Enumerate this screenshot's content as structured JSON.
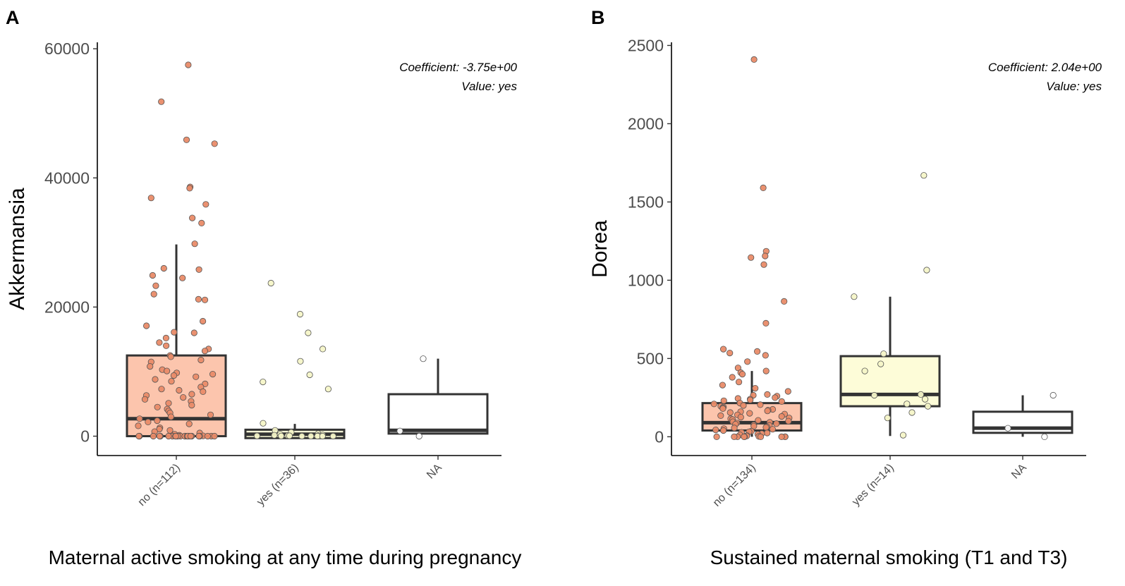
{
  "chart_data": [
    {
      "panel_label": "A",
      "type": "box",
      "ylabel": "Akkermansia",
      "xlabel": "Maternal active smoking at any time during pregnancy",
      "ylim": [
        -3000,
        61000
      ],
      "yticks": [
        0,
        20000,
        40000,
        60000
      ],
      "annotation": [
        "Coefficient: -3.75e+00",
        "Value: yes"
      ],
      "categories": [
        "no (n=112)",
        "yes (n=36)",
        "NA"
      ],
      "fills": [
        "#fcc5ad",
        "#fdfcd8",
        "#ffffff"
      ],
      "point_colors": [
        "#e98b68",
        "#f6f5c8",
        "#ffffff"
      ],
      "boxes": [
        {
          "q1": 0,
          "median": 2700,
          "q3": 12500,
          "whisker_low": 0,
          "whisker_high": 29700
        },
        {
          "q1": -300,
          "median": 300,
          "q3": 1000,
          "whisker_low": -300,
          "whisker_high": 1900
        },
        {
          "q1": 400,
          "median": 900,
          "q3": 6500,
          "whisker_low": 400,
          "whisker_high": 12000
        }
      ],
      "points": [
        [
          57500,
          51800,
          45900,
          45300,
          38600,
          38400,
          36900,
          35900,
          33800,
          33000,
          29800,
          26000,
          25800,
          24900,
          24500,
          23300,
          22000,
          21200,
          21100,
          17800,
          17100,
          16100,
          16000,
          15200,
          14500,
          14000,
          13500,
          13200,
          12500,
          12300,
          11800,
          11500,
          10800,
          10300,
          10100,
          9800,
          9600,
          9400,
          9200,
          8800,
          8500,
          8100,
          7600,
          7300,
          7100,
          6900,
          6500,
          6300,
          6000,
          5700,
          5400,
          5100,
          4800,
          4500,
          4200,
          3900,
          3600,
          3300,
          3000,
          2700,
          2400,
          2200,
          1900,
          1600,
          1300,
          1100,
          900,
          700,
          500,
          300,
          150,
          50,
          0,
          0,
          0,
          0,
          0,
          0,
          0,
          0,
          0,
          0,
          0,
          0,
          0,
          0,
          0,
          0,
          0,
          0,
          0,
          0,
          0,
          0,
          0,
          0
        ],
        [
          23700,
          18900,
          16000,
          13500,
          11600,
          9500,
          8400,
          7300,
          2000,
          900,
          600,
          400,
          300,
          200,
          150,
          100,
          80,
          60,
          40,
          20,
          10,
          0,
          0,
          0,
          0,
          0
        ],
        [
          12000,
          800,
          0
        ]
      ]
    },
    {
      "panel_label": "B",
      "type": "box",
      "ylabel": "Dorea",
      "xlabel": "Sustained maternal smoking (T1 and T3)",
      "ylim": [
        -120,
        2520
      ],
      "yticks": [
        0,
        500,
        1000,
        1500,
        2000,
        2500
      ],
      "annotation": [
        "Coefficient: 2.04e+00",
        "Value: yes"
      ],
      "categories": [
        "no (n=134)",
        "yes (n=14)",
        "NA"
      ],
      "fills": [
        "#fcc5ad",
        "#fdfcd8",
        "#ffffff"
      ],
      "point_colors": [
        "#e98b68",
        "#f6f5c8",
        "#ffffff"
      ],
      "boxes": [
        {
          "q1": 40,
          "median": 90,
          "q3": 215,
          "whisker_low": 0,
          "whisker_high": 420
        },
        {
          "q1": 195,
          "median": 270,
          "q3": 515,
          "whisker_low": 5,
          "whisker_high": 895
        },
        {
          "q1": 25,
          "median": 55,
          "q3": 160,
          "whisker_low": 0,
          "whisker_high": 265
        }
      ],
      "points": [
        [
          2410,
          1590,
          1185,
          1155,
          1145,
          1100,
          865,
          725,
          560,
          545,
          535,
          520,
          480,
          440,
          420,
          410,
          400,
          380,
          350,
          330,
          310,
          290,
          270,
          265,
          260,
          250,
          245,
          240,
          235,
          230,
          225,
          215,
          210,
          205,
          200,
          195,
          190,
          185,
          180,
          175,
          170,
          165,
          160,
          155,
          150,
          145,
          140,
          135,
          130,
          125,
          120,
          115,
          110,
          105,
          100,
          96,
          92,
          88,
          84,
          80,
          76,
          72,
          68,
          64,
          60,
          56,
          52,
          48,
          44,
          40,
          36,
          32,
          28,
          24,
          20,
          16,
          12,
          8,
          5,
          2,
          0,
          0,
          0,
          0,
          0,
          0,
          0,
          0,
          0,
          0
        ],
        [
          1670,
          1065,
          895,
          530,
          465,
          420,
          270,
          265,
          240,
          210,
          195,
          155,
          120,
          10
        ],
        [
          265,
          55,
          0
        ]
      ]
    }
  ]
}
